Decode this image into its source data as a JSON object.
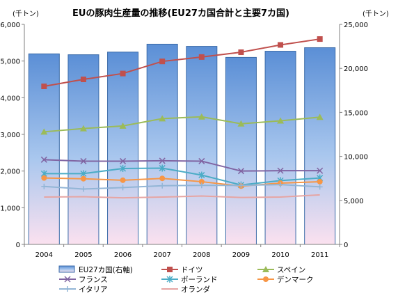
{
  "chart_data": {
    "type": "bar+line",
    "title": "EUの豚肉生産量の推移(EU27カ国合計と主要7カ国)",
    "left_unit": "(千トン)",
    "right_unit": "(千トン)",
    "categories": [
      "2004",
      "2005",
      "2006",
      "2007",
      "2008",
      "2009",
      "2010",
      "2011"
    ],
    "left_axis": {
      "ylim": [
        0,
        6000
      ],
      "ticks": [
        "0",
        "1,000",
        "2,000",
        "3,000",
        "4,000",
        "5,000",
        "6,000"
      ]
    },
    "right_axis": {
      "ylim": [
        0,
        25000
      ],
      "ticks": [
        "0",
        "5,000",
        "10,000",
        "15,000",
        "20,000",
        "25,000"
      ]
    },
    "bar_series": {
      "name": "EU27カ国(右軸)",
      "axis": "right",
      "values": [
        21650,
        21550,
        21850,
        22750,
        22500,
        21250,
        21950,
        22350
      ],
      "color": "#4f81bd"
    },
    "line_series": [
      {
        "name": "ドイツ",
        "marker": "square",
        "color": "#c0504d",
        "values": [
          4310,
          4500,
          4660,
          4990,
          5110,
          5240,
          5440,
          5600
        ]
      },
      {
        "name": "スペイン",
        "marker": "triangle",
        "color": "#9bbb59",
        "values": [
          3070,
          3160,
          3230,
          3430,
          3480,
          3290,
          3370,
          3470
        ]
      },
      {
        "name": "フランス",
        "marker": "x",
        "color": "#8064a2",
        "values": [
          2310,
          2270,
          2270,
          2280,
          2270,
          2000,
          2010,
          2010
        ]
      },
      {
        "name": "ポーランド",
        "marker": "star",
        "color": "#4bacc6",
        "values": [
          1930,
          1930,
          2070,
          2080,
          1890,
          1620,
          1740,
          1810
        ]
      },
      {
        "name": "デンマーク",
        "marker": "circle",
        "color": "#f79646",
        "values": [
          1810,
          1790,
          1750,
          1800,
          1710,
          1590,
          1670,
          1710
        ]
      },
      {
        "name": "イタリア",
        "marker": "plus",
        "color": "#92b5d6",
        "values": [
          1580,
          1510,
          1550,
          1600,
          1610,
          1610,
          1630,
          1570
        ]
      },
      {
        "name": "オランダ",
        "marker": "none",
        "color": "#e6a5a3",
        "values": [
          1290,
          1300,
          1270,
          1290,
          1320,
          1280,
          1290,
          1350
        ]
      }
    ],
    "grid": false,
    "legend_position": "bottom"
  }
}
